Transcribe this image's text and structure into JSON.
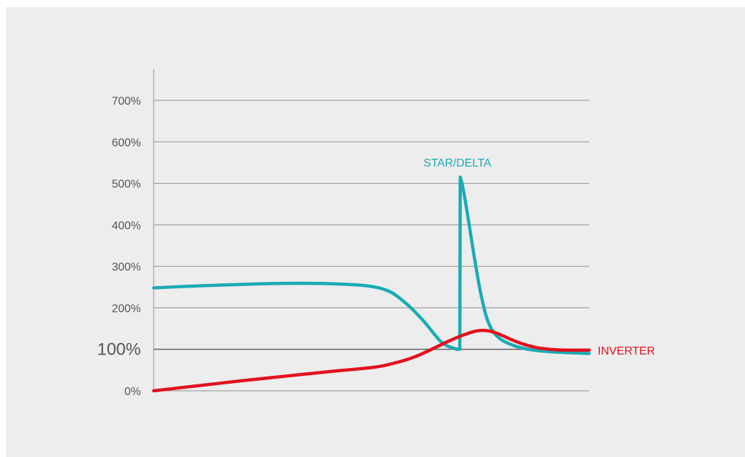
{
  "chart_data": {
    "type": "line",
    "title": "",
    "xlabel": "",
    "ylabel": "",
    "ylim": [
      0,
      700
    ],
    "y_ticks": [
      {
        "value": 0,
        "label": "0%"
      },
      {
        "value": 100,
        "label": "100%",
        "emphasis": true
      },
      {
        "value": 200,
        "label": "200%"
      },
      {
        "value": 300,
        "label": "300%"
      },
      {
        "value": 400,
        "label": "400%"
      },
      {
        "value": 500,
        "label": "500%"
      },
      {
        "value": 600,
        "label": "600%"
      },
      {
        "value": 700,
        "label": "700%"
      }
    ],
    "xlim": [
      0,
      100
    ],
    "grid": true,
    "legend": "none",
    "series": [
      {
        "name": "STAR/DELTA",
        "color": "#1aabb5",
        "x": [
          0,
          8,
          16,
          25,
          33,
          41,
          49,
          54,
          58,
          62,
          66,
          69,
          70.3,
          70.4,
          71,
          72,
          73.5,
          75,
          76.5,
          78,
          80,
          83,
          86,
          90,
          95,
          100
        ],
        "y": [
          248,
          252,
          255,
          258,
          259,
          258,
          253,
          240,
          210,
          168,
          118,
          102,
          100,
          515,
          490,
          430,
          330,
          240,
          175,
          142,
          122,
          108,
          100,
          95,
          92,
          90
        ]
      },
      {
        "name": "INVERTER",
        "color": "#e3101e",
        "x": [
          0,
          10,
          20,
          30,
          40,
          50,
          55,
          60,
          65,
          68,
          71,
          74,
          76.5,
          79,
          82,
          85,
          88,
          91,
          95,
          100
        ],
        "y": [
          0,
          12,
          24,
          35,
          46,
          56,
          66,
          82,
          106,
          121,
          134,
          144,
          145,
          138,
          124,
          112,
          104,
          100,
          98,
          98
        ]
      }
    ],
    "annotations": [
      {
        "series": "STAR/DELTA",
        "text": "STAR/DELTA"
      },
      {
        "series": "INVERTER",
        "text": "INVERTER"
      }
    ]
  }
}
